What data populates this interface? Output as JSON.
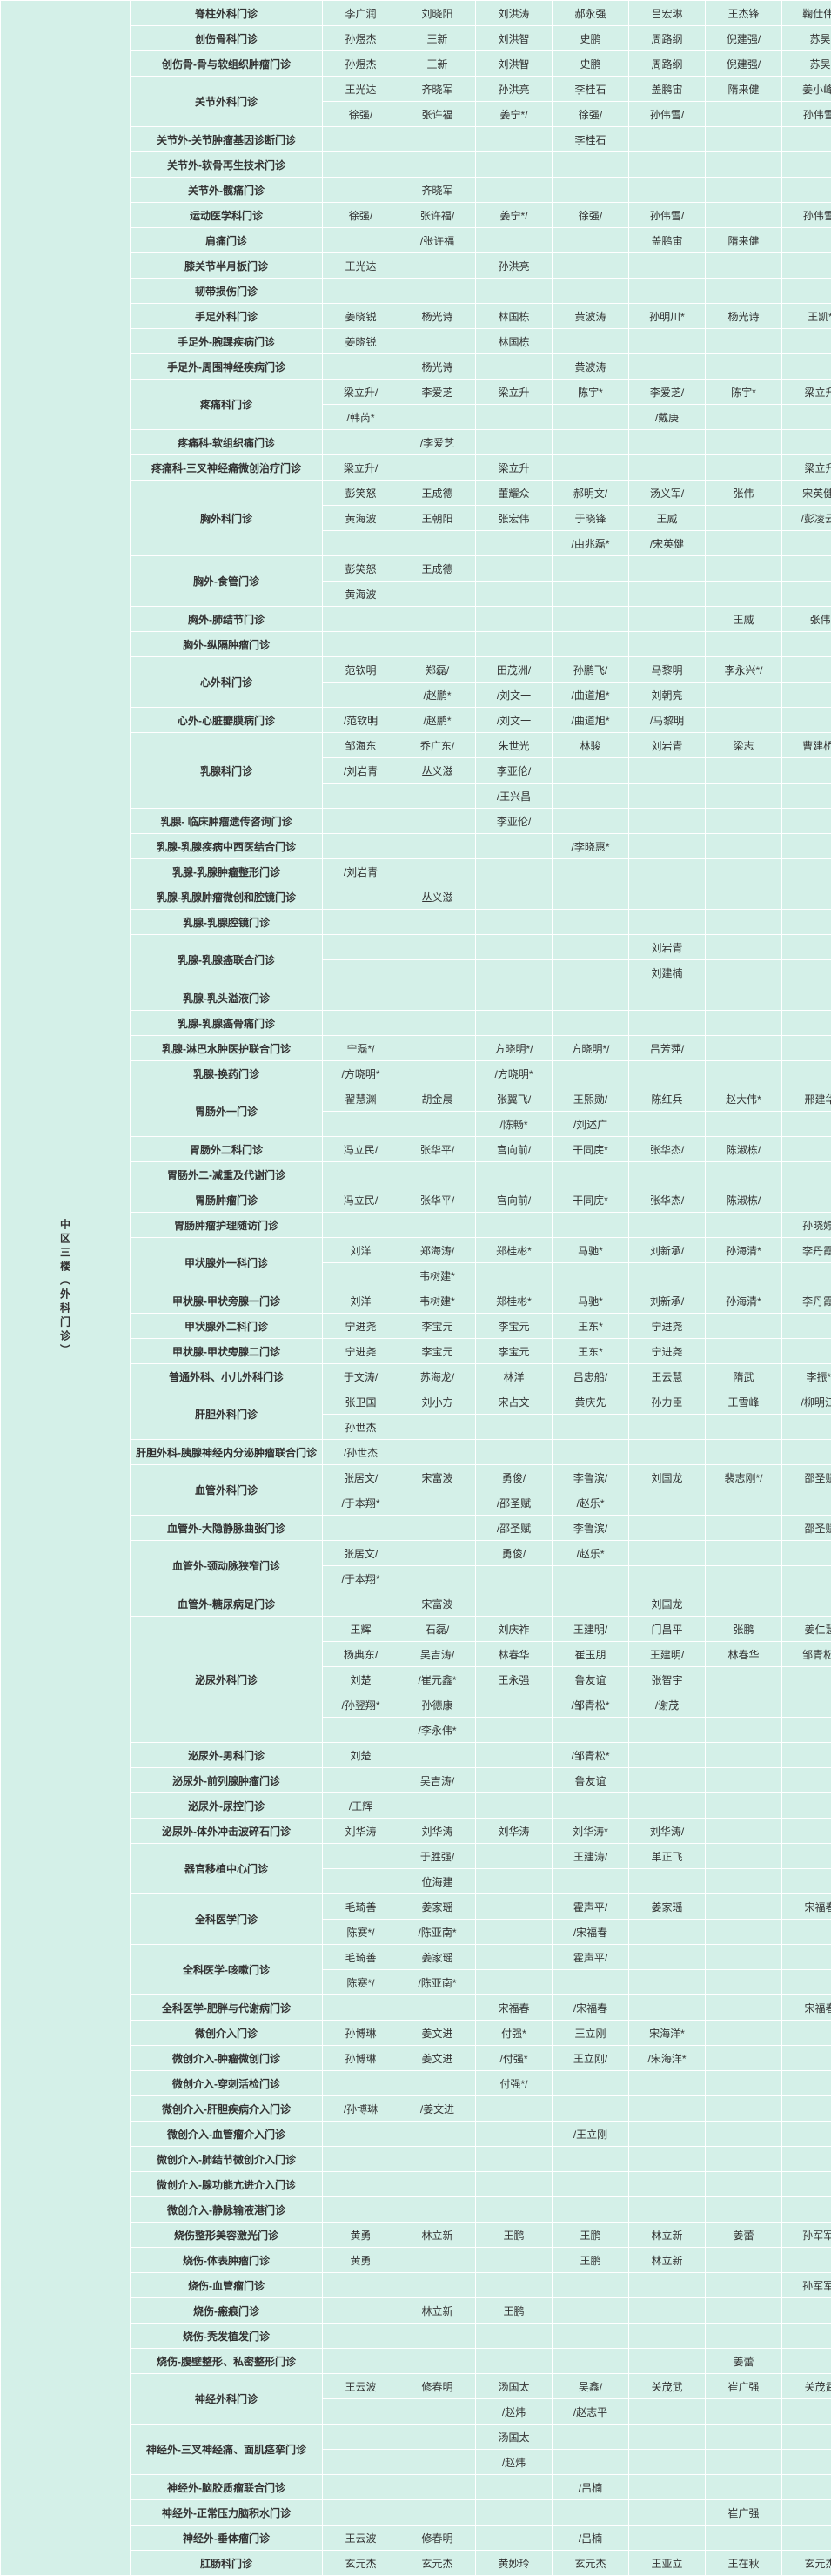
{
  "location_label": "中区三楼（外科门诊）",
  "rows": [
    {
      "dept": "脊柱外科门诊",
      "span": 1,
      "cells": [
        "李广润",
        "刘晓阳",
        "刘洪涛",
        "郝永强",
        "吕宏琳",
        "王杰锋",
        "鞠仕伟*"
      ]
    },
    {
      "dept": "创伤骨科门诊",
      "span": 1,
      "cells": [
        "孙煜杰",
        "王新",
        "刘洪智",
        "史鹏",
        "周路纲",
        "倪建强/",
        "苏昊"
      ]
    },
    {
      "dept": "创伤骨-骨与软组织肿瘤门诊",
      "span": 1,
      "cells": [
        "孙煜杰",
        "王新",
        "刘洪智",
        "史鹏",
        "周路纲",
        "倪建强/",
        "苏昊"
      ]
    },
    {
      "dept": "关节外科门诊",
      "span": 2,
      "cells": [
        "王光达",
        "齐晓军",
        "孙洪亮",
        "李桂石",
        "盖鹏宙",
        "隋来健",
        "姜小峰*"
      ]
    },
    {
      "dept": "",
      "span": 0,
      "cells": [
        "徐强/",
        "张许福",
        "姜宁*/",
        "徐强/",
        "孙伟雪/",
        "",
        "孙伟雪/"
      ]
    },
    {
      "dept": "关节外-关节肿瘤基因诊断门诊",
      "span": 1,
      "cells": [
        "",
        "",
        "",
        "李桂石",
        "",
        "",
        ""
      ]
    },
    {
      "dept": "关节外-软骨再生技术门诊",
      "span": 1,
      "cells": [
        "",
        "",
        "",
        "",
        "",
        "",
        ""
      ]
    },
    {
      "dept": "关节外-髋痛门诊",
      "span": 1,
      "cells": [
        "",
        "齐晓军",
        "",
        "",
        "",
        "",
        ""
      ]
    },
    {
      "dept": "运动医学科门诊",
      "span": 1,
      "cells": [
        "徐强/",
        "张许福/",
        "姜宁*/",
        "徐强/",
        "孙伟雪/",
        "",
        "孙伟雪/"
      ]
    },
    {
      "dept": "肩痛门诊",
      "span": 1,
      "cells": [
        "",
        "/张许福",
        "",
        "",
        "盖鹏宙",
        "隋来健",
        ""
      ]
    },
    {
      "dept": "膝关节半月板门诊",
      "span": 1,
      "cells": [
        "王光达",
        "",
        "孙洪亮",
        "",
        "",
        "",
        ""
      ]
    },
    {
      "dept": "韧带损伤门诊",
      "span": 1,
      "cells": [
        "",
        "",
        "",
        "",
        "",
        "",
        ""
      ]
    },
    {
      "dept": "手足外科门诊",
      "span": 1,
      "cells": [
        "姜晓锐",
        "杨光诗",
        "林国栋",
        "黄波涛",
        "孙明川*",
        "杨光诗",
        "王凯*"
      ]
    },
    {
      "dept": "手足外-腕踝疾病门诊",
      "span": 1,
      "cells": [
        "姜晓锐",
        "",
        "林国栋",
        "",
        "",
        "",
        ""
      ]
    },
    {
      "dept": "手足外-周围神经疾病门诊",
      "span": 1,
      "cells": [
        "",
        "杨光诗",
        "",
        "黄波涛",
        "",
        "",
        ""
      ]
    },
    {
      "dept": "疼痛科门诊",
      "span": 2,
      "cells": [
        "梁立升/",
        "李爱芝",
        "梁立升",
        "陈宇*",
        "李爱芝/",
        "陈宇*",
        "梁立升"
      ]
    },
    {
      "dept": "",
      "span": 0,
      "cells": [
        "/韩芮*",
        "",
        "",
        "",
        "/戴庚",
        "",
        ""
      ]
    },
    {
      "dept": "疼痛科-软组织痛门诊",
      "span": 1,
      "cells": [
        "",
        "/李爱芝",
        "",
        "",
        "",
        "",
        ""
      ]
    },
    {
      "dept": "疼痛科-三叉神经痛微创治疗门诊",
      "span": 1,
      "cells": [
        "梁立升/",
        "",
        "梁立升",
        "",
        "",
        "",
        "梁立升"
      ]
    },
    {
      "dept": "胸外科门诊",
      "span": 3,
      "cells": [
        "彭笑怒",
        "王成德",
        "董耀众",
        "郝明文/",
        "汤义军/",
        "张伟",
        "宋英健*"
      ]
    },
    {
      "dept": "",
      "span": 0,
      "cells": [
        "黄海波",
        "王朝阳",
        "张宏伟",
        "于晓锋",
        "王威",
        "",
        "/彭凌云*"
      ]
    },
    {
      "dept": "",
      "span": 0,
      "cells": [
        "",
        "",
        "",
        "/由兆磊*",
        "/宋英健",
        "",
        ""
      ]
    },
    {
      "dept": "胸外-食管门诊",
      "span": 2,
      "cells": [
        "彭笑怒",
        "王成德",
        "",
        "",
        "",
        "",
        ""
      ]
    },
    {
      "dept": "",
      "span": 0,
      "cells": [
        "黄海波",
        "",
        "",
        "",
        "",
        "",
        ""
      ]
    },
    {
      "dept": "胸外-肺结节门诊",
      "span": 1,
      "cells": [
        "",
        "",
        "",
        "",
        "",
        "王威",
        "张伟"
      ]
    },
    {
      "dept": "胸外-纵隔肿瘤门诊",
      "span": 1,
      "cells": [
        "",
        "",
        "",
        "",
        "",
        "",
        ""
      ]
    },
    {
      "dept": "心外科门诊",
      "span": 2,
      "cells": [
        "范钦明",
        "郑磊/",
        "田茂洲/",
        "孙鹏飞/",
        "马黎明",
        "李永兴*/",
        ""
      ]
    },
    {
      "dept": "",
      "span": 0,
      "cells": [
        "",
        "/赵鹏*",
        "/刘文一",
        "/曲道旭*",
        "刘朝亮",
        "",
        ""
      ]
    },
    {
      "dept": "心外-心脏瓣膜病门诊",
      "span": 1,
      "cells": [
        "/范钦明",
        "/赵鹏*",
        "/刘文一",
        "/曲道旭*",
        "/马黎明",
        "",
        ""
      ]
    },
    {
      "dept": "乳腺科门诊",
      "span": 3,
      "cells": [
        "邹海东",
        "乔广东/",
        "朱世光",
        "林骏",
        "刘岩青",
        "梁志",
        "曹建桥*"
      ]
    },
    {
      "dept": "",
      "span": 0,
      "cells": [
        "/刘岩青",
        "丛义滋",
        "李亚伦/",
        "",
        "",
        "",
        ""
      ]
    },
    {
      "dept": "",
      "span": 0,
      "cells": [
        "",
        "",
        "/王兴昌",
        "",
        "",
        "",
        ""
      ]
    },
    {
      "dept": "乳腺- 临床肿瘤遗传咨询门诊",
      "span": 1,
      "cells": [
        "",
        "",
        "李亚伦/",
        "",
        "",
        "",
        ""
      ]
    },
    {
      "dept": "乳腺-乳腺疾病中西医结合门诊",
      "span": 1,
      "cells": [
        "",
        "",
        "",
        "/李晓惠*",
        "",
        "",
        ""
      ]
    },
    {
      "dept": "乳腺-乳腺肿瘤整形门诊",
      "span": 1,
      "cells": [
        "/刘岩青",
        "",
        "",
        "",
        "",
        "",
        ""
      ]
    },
    {
      "dept": "乳腺-乳腺肿瘤微创和腔镜门诊",
      "span": 1,
      "cells": [
        "",
        "丛义滋",
        "",
        "",
        "",
        "",
        ""
      ]
    },
    {
      "dept": "乳腺-乳腺腔镜门诊",
      "span": 1,
      "cells": [
        "",
        "",
        "",
        "",
        "",
        "",
        ""
      ]
    },
    {
      "dept": "乳腺-乳腺癌联合门诊",
      "span": 2,
      "cells": [
        "",
        "",
        "",
        "",
        "刘岩青",
        "",
        ""
      ]
    },
    {
      "dept": "",
      "span": 0,
      "cells": [
        "",
        "",
        "",
        "",
        "刘建楠",
        "",
        ""
      ]
    },
    {
      "dept": "乳腺-乳头溢液门诊",
      "span": 1,
      "cells": [
        "",
        "",
        "",
        "",
        "",
        "",
        ""
      ]
    },
    {
      "dept": "乳腺-乳腺癌骨痛门诊",
      "span": 1,
      "cells": [
        "",
        "",
        "",
        "",
        "",
        "",
        ""
      ]
    },
    {
      "dept": "乳腺-淋巴水肿医护联合门诊",
      "span": 1,
      "cells": [
        "宁磊*/",
        "",
        "方晓明*/",
        "方晓明*/",
        "吕芳萍/",
        "",
        ""
      ]
    },
    {
      "dept": "乳腺-换药门诊",
      "span": 1,
      "cells": [
        "/方晓明*",
        "",
        "/方晓明*",
        "",
        "",
        "",
        ""
      ]
    },
    {
      "dept": "胃肠外一门诊",
      "span": 2,
      "cells": [
        "翟慧渊",
        "胡金晨",
        "张翼飞/",
        "王熙勋/",
        "陈红兵",
        "赵大伟*",
        "邢建华"
      ]
    },
    {
      "dept": "",
      "span": 0,
      "cells": [
        "",
        "",
        "/陈畅*",
        "/刘述广",
        "",
        "",
        ""
      ]
    },
    {
      "dept": "胃肠外二科门诊",
      "span": 1,
      "cells": [
        "冯立民/",
        "张华平/",
        "宫向前/",
        "干同庑*",
        "张华杰/",
        "陈淑栋/",
        ""
      ]
    },
    {
      "dept": "胃肠外二-减重及代谢门诊",
      "span": 1,
      "cells": [
        "",
        "",
        "",
        "",
        "",
        "",
        ""
      ]
    },
    {
      "dept": "胃肠肿瘤门诊",
      "span": 1,
      "cells": [
        "冯立民/",
        "张华平/",
        "宫向前/",
        "干同庑*",
        "张华杰/",
        "陈淑栋/",
        ""
      ]
    },
    {
      "dept": "胃肠肿瘤护理随访门诊",
      "span": 1,
      "cells": [
        "",
        "",
        "",
        "",
        "",
        "",
        "孙晓婷*"
      ]
    },
    {
      "dept": "甲状腺外一科门诊",
      "span": 2,
      "cells": [
        "刘洋",
        "郑海涛/",
        "郑桂彬*",
        "马驰*",
        "刘新承/",
        "孙海清*",
        "李丹霞*"
      ]
    },
    {
      "dept": "",
      "span": 0,
      "cells": [
        "",
        "韦树建*",
        "",
        "",
        "",
        "",
        ""
      ]
    },
    {
      "dept": "甲状腺-甲状旁腺一门诊",
      "span": 1,
      "cells": [
        "刘洋",
        "韦树建*",
        "郑桂彬*",
        "马驰*",
        "刘新承/",
        "孙海清*",
        "李丹霞*"
      ]
    },
    {
      "dept": "甲状腺外二科门诊",
      "span": 1,
      "cells": [
        "宁进尧",
        "李宝元",
        "李宝元",
        "王东*",
        "宁进尧",
        "",
        ""
      ]
    },
    {
      "dept": "甲状腺-甲状旁腺二门诊",
      "span": 1,
      "cells": [
        "宁进尧",
        "李宝元",
        "李宝元",
        "王东*",
        "宁进尧",
        "",
        ""
      ]
    },
    {
      "dept": "普通外科、小儿外科门诊",
      "span": 1,
      "cells": [
        "于文涛/",
        "苏海龙/",
        "林洋",
        "吕忠船/",
        "王云慧",
        "隋武",
        "李振*/"
      ]
    },
    {
      "dept": "肝胆外科门诊",
      "span": 2,
      "cells": [
        "张卫国",
        "刘小方",
        "宋占文",
        "黄庆先",
        "孙力臣",
        "王雪峰",
        "/柳明江*"
      ]
    },
    {
      "dept": "",
      "span": 0,
      "cells": [
        "孙世杰",
        "",
        "",
        "",
        "",
        "",
        ""
      ]
    },
    {
      "dept": "肝胆外科-胰腺神经内分泌肿瘤联合门诊",
      "span": 1,
      "cells": [
        "/孙世杰",
        "",
        "",
        "",
        "",
        "",
        ""
      ]
    },
    {
      "dept": "血管外科门诊",
      "span": 2,
      "cells": [
        "张居文/",
        "宋富波",
        "勇俊/",
        "李鲁滨/",
        "刘国龙",
        "裴志刚*/",
        "邵圣赋"
      ]
    },
    {
      "dept": "",
      "span": 0,
      "cells": [
        "/于本翔*",
        "",
        "/邵圣赋",
        "/赵乐*",
        "",
        "",
        ""
      ]
    },
    {
      "dept": "血管外-大隐静脉曲张门诊",
      "span": 1,
      "cells": [
        "",
        "",
        "/邵圣赋",
        "李鲁滨/",
        "",
        "",
        "邵圣赋"
      ]
    },
    {
      "dept": "血管外-颈动脉狭窄门诊",
      "span": 2,
      "cells": [
        "张居文/",
        "",
        "勇俊/",
        "/赵乐*",
        "",
        "",
        ""
      ]
    },
    {
      "dept": "",
      "span": 0,
      "cells": [
        "/于本翔*",
        "",
        "",
        "",
        "",
        "",
        ""
      ]
    },
    {
      "dept": "血管外-糖尿病足门诊",
      "span": 1,
      "cells": [
        "",
        "宋富波",
        "",
        "",
        "刘国龙",
        "",
        ""
      ]
    },
    {
      "dept": "泌尿外科门诊",
      "span": 4,
      "cells": [
        "王辉",
        "石磊/",
        "刘庆祚",
        "王建明/",
        "门昌平",
        "张鹏",
        "姜仁慧"
      ]
    },
    {
      "dept": "",
      "span": 0,
      "cells": [
        "杨典东/",
        "吴吉涛/",
        "林春华",
        "崔玉朋",
        "王建明/",
        "林春华",
        "邹青松*"
      ]
    },
    {
      "dept": "",
      "span": 0,
      "cells": [
        "刘楚",
        "/崔元鑫*",
        "王永强",
        "鲁友谊",
        "张智宇",
        "",
        ""
      ]
    },
    {
      "dept": "",
      "span": 0,
      "cells": [
        "/孙翌翔*",
        "孙德康",
        "",
        "/邹青松*",
        "/谢茂",
        "",
        ""
      ]
    },
    {
      "dept": "",
      "span": -1,
      "cells": [
        "",
        "/李永伟*",
        "",
        "",
        "",
        "",
        ""
      ]
    },
    {
      "dept": "泌尿外-男科门诊",
      "span": 1,
      "cells": [
        "刘楚",
        "",
        "",
        "/邹青松*",
        "",
        "",
        ""
      ]
    },
    {
      "dept": "泌尿外-前列腺肿瘤门诊",
      "span": 1,
      "cells": [
        "",
        "吴吉涛/",
        "",
        "鲁友谊",
        "",
        "",
        ""
      ]
    },
    {
      "dept": "泌尿外-尿控门诊",
      "span": 1,
      "cells": [
        "/王辉",
        "",
        "",
        "",
        "",
        "",
        ""
      ]
    },
    {
      "dept": "泌尿外-体外冲击波碎石门诊",
      "span": 1,
      "cells": [
        "刘华涛",
        "刘华涛",
        "刘华涛",
        "刘华涛*",
        "刘华涛/",
        "",
        ""
      ]
    },
    {
      "dept": "器官移植中心门诊",
      "span": 2,
      "cells": [
        "",
        "于胜强/",
        "",
        "王建涛/",
        "单正飞",
        "",
        ""
      ]
    },
    {
      "dept": "",
      "span": 0,
      "cells": [
        "",
        "位海建",
        "",
        "",
        "",
        "",
        ""
      ]
    },
    {
      "dept": "全科医学门诊",
      "span": 2,
      "cells": [
        "毛琦善",
        "姜家瑶",
        "",
        "霍声平/",
        "姜家瑶",
        "",
        "宋福春"
      ]
    },
    {
      "dept": "",
      "span": 0,
      "cells": [
        "陈赛*/",
        "/陈亚南*",
        "",
        "/宋福春",
        "",
        "",
        ""
      ]
    },
    {
      "dept": "全科医学-咳嗽门诊",
      "span": 2,
      "cells": [
        "毛琦善",
        "姜家瑶",
        "",
        "霍声平/",
        "",
        "",
        ""
      ]
    },
    {
      "dept": "",
      "span": 0,
      "cells": [
        "陈赛*/",
        "/陈亚南*",
        "",
        "",
        "",
        "",
        ""
      ]
    },
    {
      "dept": "全科医学-肥胖与代谢病门诊",
      "span": 1,
      "cells": [
        "",
        "",
        "宋福春",
        "/宋福春",
        "",
        "",
        "宋福春"
      ]
    },
    {
      "dept": "微创介入门诊",
      "span": 1,
      "cells": [
        "孙博琳",
        "姜文进",
        "付强*",
        "王立刚",
        "宋海洋*",
        "",
        ""
      ]
    },
    {
      "dept": "微创介入-肿瘤微创门诊",
      "span": 1,
      "cells": [
        "孙博琳",
        "姜文进",
        "/付强*",
        "王立刚/",
        "/宋海洋*",
        "",
        ""
      ]
    },
    {
      "dept": "微创介入-穿刺活检门诊",
      "span": 1,
      "cells": [
        "",
        "",
        "付强*/",
        "",
        "",
        "",
        ""
      ]
    },
    {
      "dept": "微创介入-肝胆疾病介入门诊",
      "span": 1,
      "cells": [
        "/孙博琳",
        "/姜文进",
        "",
        "",
        "",
        "",
        ""
      ]
    },
    {
      "dept": "微创介入-血管瘤介入门诊",
      "span": 1,
      "cells": [
        "",
        "",
        "",
        "/王立刚",
        "",
        "",
        ""
      ]
    },
    {
      "dept": "微创介入-肺结节微创介入门诊",
      "span": 1,
      "cells": [
        "",
        "",
        "",
        "",
        "",
        "",
        ""
      ]
    },
    {
      "dept": "微创介入-腺功能亢进介入门诊",
      "span": 1,
      "cells": [
        "",
        "",
        "",
        "",
        "",
        "",
        ""
      ]
    },
    {
      "dept": "微创介入-静脉输液港门诊",
      "span": 1,
      "cells": [
        "",
        "",
        "",
        "",
        "",
        "",
        ""
      ]
    },
    {
      "dept": "烧伤整形美容激光门诊",
      "span": 1,
      "cells": [
        "黄勇",
        "林立新",
        "王鹏",
        "王鹏",
        "林立新",
        "姜蕾",
        "孙军军*"
      ]
    },
    {
      "dept": "烧伤-体表肿瘤门诊",
      "span": 1,
      "cells": [
        "黄勇",
        "",
        "",
        "王鹏",
        "林立新",
        "",
        ""
      ]
    },
    {
      "dept": "烧伤-血管瘤门诊",
      "span": 1,
      "cells": [
        "",
        "",
        "",
        "",
        "",
        "",
        "孙军军*"
      ]
    },
    {
      "dept": "烧伤-瘢痕门诊",
      "span": 1,
      "cells": [
        "",
        "林立新",
        "王鹏",
        "",
        "",
        "",
        ""
      ]
    },
    {
      "dept": "烧伤-秃发植发门诊",
      "span": 1,
      "cells": [
        "",
        "",
        "",
        "",
        "",
        "",
        ""
      ]
    },
    {
      "dept": "烧伤-腹壁整形、私密整形门诊",
      "span": 1,
      "cells": [
        "",
        "",
        "",
        "",
        "",
        "姜蕾",
        ""
      ]
    },
    {
      "dept": "神经外科门诊",
      "span": 2,
      "cells": [
        "王云波",
        "修春明",
        "汤国太",
        "吴鑫/",
        "关茂武",
        "崔广强",
        "关茂武"
      ]
    },
    {
      "dept": "",
      "span": 0,
      "cells": [
        "",
        "",
        "/赵炜",
        "/赵志平",
        "",
        "",
        ""
      ]
    },
    {
      "dept": "神经外-三叉神经痛、面肌痉挛门诊",
      "span": 2,
      "cells": [
        "",
        "",
        "汤国太",
        "",
        "",
        "",
        ""
      ]
    },
    {
      "dept": "",
      "span": 0,
      "cells": [
        "",
        "",
        "/赵炜",
        "",
        "",
        "",
        ""
      ]
    },
    {
      "dept": "神经外-脑胶质瘤联合门诊",
      "span": 1,
      "cells": [
        "",
        "",
        "",
        "/吕楠",
        "",
        "",
        ""
      ]
    },
    {
      "dept": "神经外-正常压力脑积水门诊",
      "span": 1,
      "cells": [
        "",
        "",
        "",
        "",
        "",
        "崔广强",
        ""
      ]
    },
    {
      "dept": "神经外-垂体瘤门诊",
      "span": 1,
      "cells": [
        "王云波",
        "修春明",
        "",
        "/吕楠",
        "",
        "",
        ""
      ]
    },
    {
      "dept": "肛肠科门诊",
      "span": 1,
      "cells": [
        "玄元杰",
        "玄元杰",
        "黄妙玲",
        "玄元杰",
        "王亚立",
        "王在秋",
        "玄元杰"
      ]
    }
  ]
}
